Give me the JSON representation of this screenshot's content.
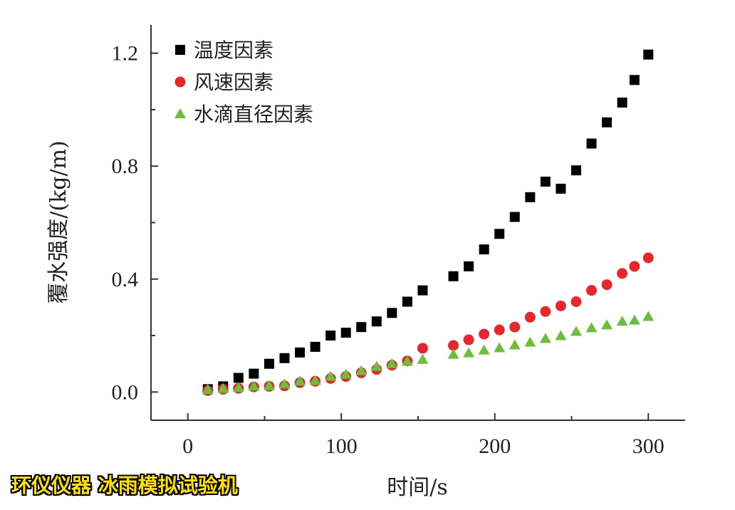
{
  "chart_data": {
    "type": "scatter",
    "xlabel": "时间/s",
    "ylabel": "覆水强度/(kg/m)",
    "xlim": [
      -24,
      324
    ],
    "ylim": [
      -0.1,
      1.3
    ],
    "xticks": [
      "0",
      "100",
      "200",
      "300"
    ],
    "yticks": [
      "0.0",
      "0.4",
      "0.8",
      "1.2"
    ],
    "grid": false,
    "legend_position": "top-left",
    "x": [
      13,
      23,
      33,
      43,
      53,
      63,
      73,
      83,
      93,
      103,
      113,
      123,
      133,
      143,
      153,
      173,
      183,
      193,
      203,
      213,
      223,
      233,
      243,
      253,
      263,
      273,
      283,
      291,
      300
    ],
    "series": [
      {
        "name": "温度因素",
        "marker": "square",
        "color": "#000000",
        "values": [
          0.01,
          0.02,
          0.05,
          0.065,
          0.1,
          0.12,
          0.14,
          0.16,
          0.2,
          0.21,
          0.23,
          0.25,
          0.28,
          0.32,
          0.36,
          0.41,
          0.445,
          0.505,
          0.56,
          0.62,
          0.69,
          0.745,
          0.72,
          0.785,
          0.88,
          0.955,
          1.025,
          1.105,
          1.195
        ]
      },
      {
        "name": "风速因素",
        "marker": "circle",
        "color": "#e8262b",
        "values": [
          0.005,
          0.01,
          0.013,
          0.018,
          0.02,
          0.022,
          0.033,
          0.038,
          0.048,
          0.055,
          0.068,
          0.08,
          0.095,
          0.11,
          0.155,
          0.165,
          0.185,
          0.205,
          0.22,
          0.23,
          0.265,
          0.285,
          0.305,
          0.32,
          0.36,
          0.38,
          0.42,
          0.445,
          0.475
        ]
      },
      {
        "name": "水滴直径因素",
        "marker": "triangle",
        "color": "#6cbf3a",
        "values": [
          0.008,
          0.012,
          0.015,
          0.02,
          0.022,
          0.028,
          0.038,
          0.04,
          0.055,
          0.062,
          0.075,
          0.09,
          0.1,
          0.108,
          0.115,
          0.133,
          0.138,
          0.148,
          0.156,
          0.166,
          0.176,
          0.189,
          0.199,
          0.214,
          0.227,
          0.237,
          0.25,
          0.254,
          0.267
        ]
      }
    ]
  },
  "watermark": "环仪仪器 冰雨模拟试验机"
}
